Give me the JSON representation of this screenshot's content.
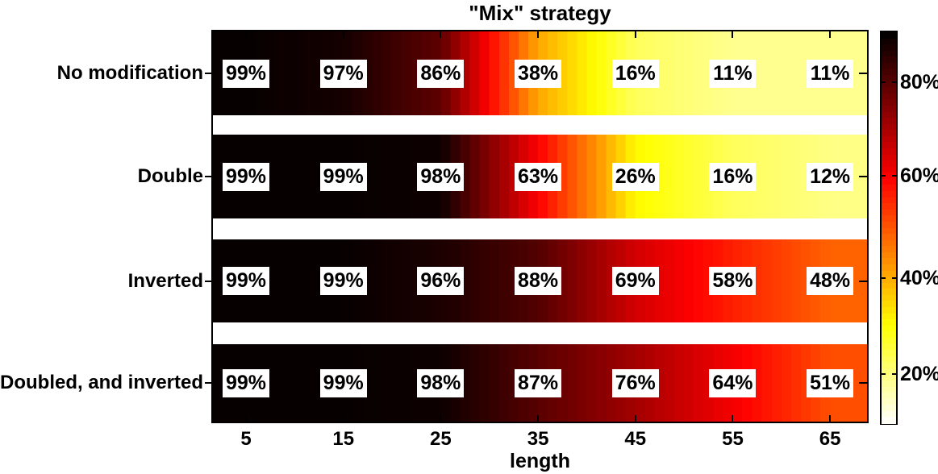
{
  "title": "\"Mix\" strategy",
  "chart_data": {
    "type": "heatmap",
    "title": "\"Mix\" strategy",
    "xlabel": "length",
    "x_ticks": [
      5,
      15,
      25,
      35,
      45,
      55,
      65
    ],
    "xlim": [
      1.6,
      68.8
    ],
    "categories": [
      "No modification",
      "Double",
      "Inverted",
      "Doubled, and inverted"
    ],
    "series": [
      {
        "name": "No modification",
        "values": [
          99,
          97,
          86,
          38,
          16,
          11,
          11
        ]
      },
      {
        "name": "Double",
        "values": [
          99,
          99,
          98,
          63,
          26,
          16,
          12
        ]
      },
      {
        "name": "Inverted",
        "values": [
          99,
          99,
          96,
          88,
          69,
          58,
          48
        ]
      },
      {
        "name": "Doubled, and inverted",
        "values": [
          99,
          99,
          98,
          87,
          76,
          64,
          51
        ]
      }
    ],
    "cell_label_suffix": "%",
    "colormap": "hot-reversed-black-high-white-low",
    "colorbar": {
      "position": "right",
      "ticks": [
        {
          "label": "80%",
          "fraction_from_top": 0.127
        },
        {
          "label": "60%",
          "fraction_from_top": 0.368
        },
        {
          "label": "40%",
          "fraction_from_top": 0.629
        },
        {
          "label": "20%",
          "fraction_from_top": 0.875
        }
      ]
    },
    "grid": false
  }
}
